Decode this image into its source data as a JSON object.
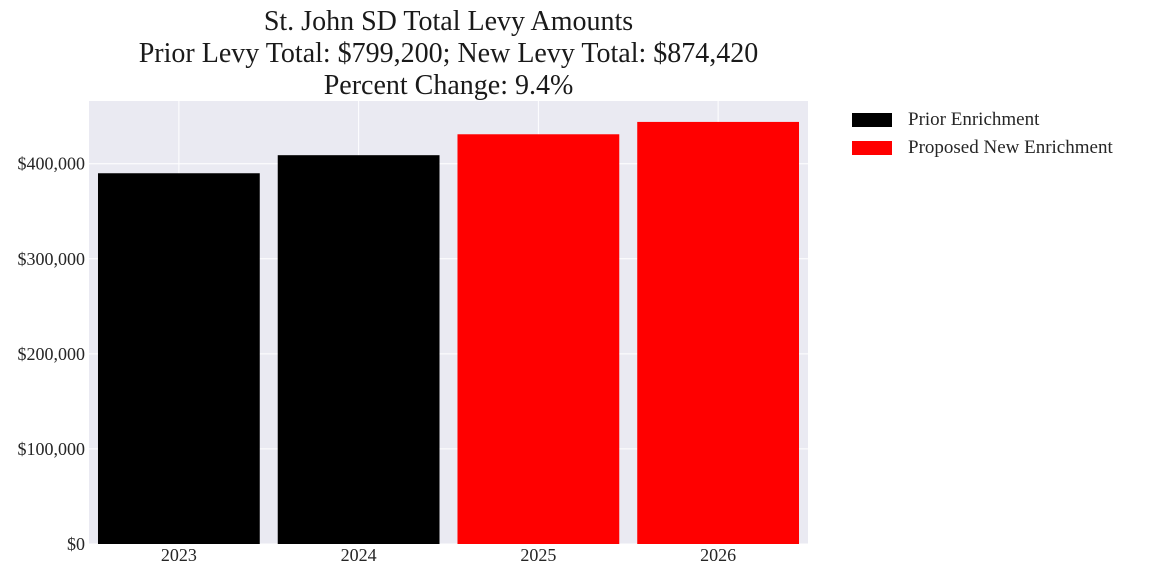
{
  "chart_data": {
    "type": "bar",
    "title_lines": [
      "St. John SD Total Levy Amounts",
      "Prior Levy Total:  $799,200; New Levy Total: $874,420",
      "Percent Change: 9.4%"
    ],
    "categories": [
      "2023",
      "2024",
      "2025",
      "2026"
    ],
    "values": [
      390000,
      409000,
      431000,
      444000
    ],
    "bar_series": [
      "Prior Enrichment",
      "Prior Enrichment",
      "Proposed New Enrichment",
      "Proposed New Enrichment"
    ],
    "ylim": [
      0,
      466000
    ],
    "yticks": [
      0,
      100000,
      200000,
      300000,
      400000
    ],
    "ytick_labels": [
      "$0",
      "$100,000",
      "$200,000",
      "$300,000",
      "$400,000"
    ],
    "legend": [
      {
        "name": "Prior Enrichment",
        "color": "#000000"
      },
      {
        "name": "Proposed New Enrichment",
        "color": "#ff0000"
      }
    ],
    "legend_placement": "outside-right-top",
    "grid": true,
    "background_color": "#eaeaf2"
  }
}
